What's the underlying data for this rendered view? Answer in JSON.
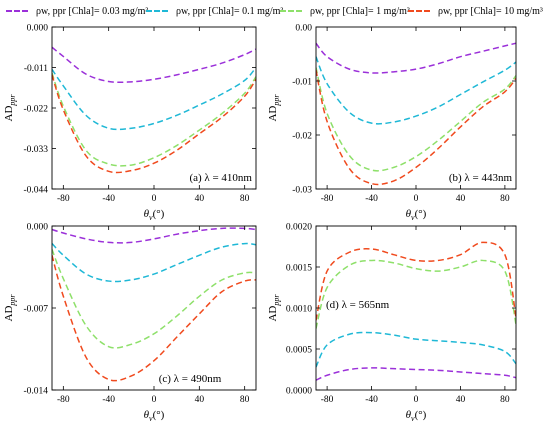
{
  "legend": {
    "items": [
      {
        "label": "ρw, ppr [Chla]= 0.03 mg/m³",
        "color": "#9B30D9"
      },
      {
        "label": "ρw, ppr [Chla]= 0.1 mg/m³",
        "color": "#1FB8D6"
      },
      {
        "label": "ρw, ppr [Chla]= 1 mg/m³",
        "color": "#8EE06A"
      },
      {
        "label": "ρw, ppr [Chla]= 10 mg/m³",
        "color": "#F04A1E"
      }
    ]
  },
  "chart_data": [
    {
      "type": "line",
      "panel_label": "(a) λ = 410nm",
      "xlabel": "θv(°)",
      "ylabel": "ADppr",
      "xlim": [
        -90,
        90
      ],
      "ylim": [
        -0.044,
        0.0
      ],
      "xticks": [
        -80,
        -40,
        0,
        40,
        80
      ],
      "yticks": [
        0.0,
        -0.011,
        -0.022,
        -0.033,
        -0.044
      ],
      "ytick_labels": [
        "0.000",
        "-0.011",
        "-0.022",
        "-0.033",
        "-0.044"
      ],
      "x": [
        -90,
        -80,
        -60,
        -40,
        -20,
        0,
        20,
        40,
        60,
        80,
        90
      ],
      "series": [
        {
          "name": "0.03 mg/m³",
          "values": [
            -0.0055,
            -0.008,
            -0.0128,
            -0.0148,
            -0.0149,
            -0.0142,
            -0.013,
            -0.0115,
            -0.0098,
            -0.0075,
            -0.006
          ]
        },
        {
          "name": "0.1 mg/m³",
          "values": [
            -0.0115,
            -0.016,
            -0.024,
            -0.0275,
            -0.0275,
            -0.0262,
            -0.024,
            -0.0212,
            -0.0182,
            -0.0145,
            -0.011
          ]
        },
        {
          "name": "1 mg/m³",
          "values": [
            -0.0125,
            -0.0215,
            -0.0335,
            -0.0372,
            -0.0375,
            -0.0355,
            -0.0322,
            -0.028,
            -0.0235,
            -0.018,
            -0.0135
          ]
        },
        {
          "name": "10 mg/m³",
          "values": [
            -0.013,
            -0.0225,
            -0.035,
            -0.0392,
            -0.039,
            -0.037,
            -0.0335,
            -0.029,
            -0.0245,
            -0.0188,
            -0.0142
          ]
        }
      ]
    },
    {
      "type": "line",
      "panel_label": "(b) λ = 443nm",
      "xlabel": "θv(°)",
      "ylabel": "ADppr",
      "xlim": [
        -90,
        90
      ],
      "ylim": [
        -0.03,
        0.0
      ],
      "xticks": [
        -80,
        -40,
        0,
        40,
        80
      ],
      "yticks": [
        0.0,
        -0.01,
        -0.02,
        -0.03
      ],
      "ytick_labels": [
        "0.00",
        "-0.01",
        "-0.02",
        "-0.03"
      ],
      "x": [
        -90,
        -80,
        -60,
        -40,
        -20,
        0,
        20,
        40,
        60,
        80,
        90
      ],
      "series": [
        {
          "name": "0.03 mg/m³",
          "values": [
            -0.003,
            -0.0055,
            -0.0078,
            -0.0085,
            -0.0083,
            -0.0078,
            -0.0068,
            -0.0055,
            -0.0045,
            -0.0035,
            -0.003
          ]
        },
        {
          "name": "0.1 mg/m³",
          "values": [
            -0.0055,
            -0.0105,
            -0.0158,
            -0.0178,
            -0.0176,
            -0.0165,
            -0.0148,
            -0.0125,
            -0.0102,
            -0.008,
            -0.0065
          ]
        },
        {
          "name": "1 mg/m³",
          "values": [
            -0.0075,
            -0.016,
            -0.0238,
            -0.0265,
            -0.026,
            -0.024,
            -0.021,
            -0.0175,
            -0.014,
            -0.0115,
            -0.009
          ]
        },
        {
          "name": "10 mg/m³",
          "values": [
            -0.008,
            -0.0175,
            -0.0262,
            -0.029,
            -0.0285,
            -0.026,
            -0.0225,
            -0.0185,
            -0.0148,
            -0.012,
            -0.0095
          ]
        }
      ]
    },
    {
      "type": "line",
      "panel_label": "(c) λ = 490nm",
      "xlabel": "θv(°)",
      "ylabel": "ADppr",
      "xlim": [
        -90,
        90
      ],
      "ylim": [
        -0.014,
        0.0
      ],
      "xticks": [
        -80,
        -40,
        0,
        40,
        80
      ],
      "yticks": [
        0.0,
        -0.007,
        -0.014
      ],
      "ytick_labels": [
        "0.000",
        "-0.007",
        "-0.014"
      ],
      "x": [
        -90,
        -80,
        -60,
        -40,
        -20,
        0,
        20,
        40,
        60,
        80,
        90
      ],
      "series": [
        {
          "name": "0.03 mg/m³",
          "values": [
            -0.0003,
            -0.0006,
            -0.0011,
            -0.0014,
            -0.0014,
            -0.0011,
            -0.0007,
            -0.0004,
            -0.0002,
            -0.0002,
            -0.0003
          ]
        },
        {
          "name": "0.1 mg/m³",
          "values": [
            -0.0015,
            -0.0025,
            -0.0041,
            -0.0047,
            -0.0046,
            -0.0041,
            -0.0033,
            -0.0025,
            -0.0018,
            -0.0015,
            -0.0016
          ]
        },
        {
          "name": "1 mg/m³",
          "values": [
            -0.002,
            -0.0045,
            -0.0085,
            -0.0103,
            -0.0101,
            -0.0092,
            -0.0077,
            -0.006,
            -0.0046,
            -0.004,
            -0.004
          ]
        },
        {
          "name": "10 mg/m³",
          "values": [
            -0.0025,
            -0.006,
            -0.0112,
            -0.0131,
            -0.0128,
            -0.0115,
            -0.0095,
            -0.0075,
            -0.0056,
            -0.0047,
            -0.0046
          ]
        }
      ]
    },
    {
      "type": "line",
      "panel_label": "(d) λ = 565nm",
      "xlabel": "θv(°)",
      "ylabel": "ADppr",
      "xlim": [
        -90,
        90
      ],
      "ylim": [
        0.0,
        0.002
      ],
      "xticks": [
        -80,
        -40,
        0,
        40,
        80
      ],
      "yticks": [
        0.0,
        0.0005,
        0.001,
        0.0015,
        0.002
      ],
      "ytick_labels": [
        "0.0000",
        "0.0005",
        "0.0010",
        "0.0015",
        "0.0020"
      ],
      "x": [
        -90,
        -80,
        -60,
        -40,
        -20,
        0,
        20,
        40,
        60,
        80,
        90
      ],
      "series": [
        {
          "name": "0.03 mg/m³",
          "values": [
            0.00012,
            0.00018,
            0.00025,
            0.00027,
            0.00026,
            0.00025,
            0.00024,
            0.00022,
            0.0002,
            0.00018,
            0.00015
          ]
        },
        {
          "name": "0.1 mg/m³",
          "values": [
            0.00028,
            0.00055,
            0.00068,
            0.0007,
            0.00067,
            0.00062,
            0.0006,
            0.00058,
            0.00055,
            0.00047,
            0.00032
          ]
        },
        {
          "name": "1 mg/m³",
          "values": [
            0.00075,
            0.00125,
            0.00152,
            0.00158,
            0.00155,
            0.00148,
            0.00145,
            0.0015,
            0.00158,
            0.00145,
            0.0008
          ]
        },
        {
          "name": "10 mg/m³",
          "values": [
            0.00085,
            0.00145,
            0.00168,
            0.00172,
            0.00165,
            0.00158,
            0.00158,
            0.00165,
            0.0018,
            0.00165,
            0.00088
          ]
        }
      ]
    }
  ]
}
